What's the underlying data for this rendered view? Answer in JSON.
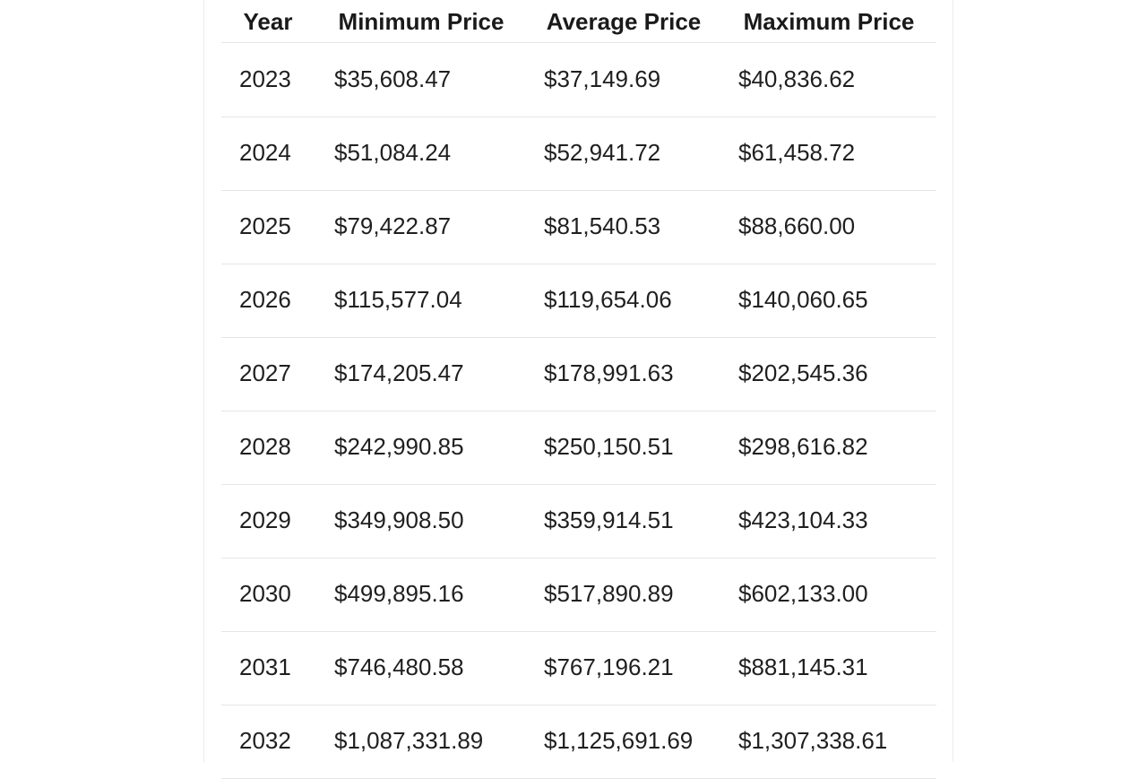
{
  "table": {
    "headers": [
      "Year",
      "Minimum Price",
      "Average Price",
      "Maximum Price"
    ],
    "rows": [
      [
        "2023",
        "$35,608.47",
        "$37,149.69",
        "$40,836.62"
      ],
      [
        "2024",
        "$51,084.24",
        "$52,941.72",
        "$61,458.72"
      ],
      [
        "2025",
        "$79,422.87",
        "$81,540.53",
        "$88,660.00"
      ],
      [
        "2026",
        "$115,577.04",
        "$119,654.06",
        "$140,060.65"
      ],
      [
        "2027",
        "$174,205.47",
        "$178,991.63",
        "$202,545.36"
      ],
      [
        "2028",
        "$242,990.85",
        "$250,150.51",
        "$298,616.82"
      ],
      [
        "2029",
        "$349,908.50",
        "$359,914.51",
        "$423,104.33"
      ],
      [
        "2030",
        "$499,895.16",
        "$517,890.89",
        "$602,133.00"
      ],
      [
        "2031",
        "$746,480.58",
        "$767,196.21",
        "$881,145.31"
      ],
      [
        "2032",
        "$1,087,331.89",
        "$1,125,691.69",
        "$1,307,338.61"
      ]
    ]
  }
}
